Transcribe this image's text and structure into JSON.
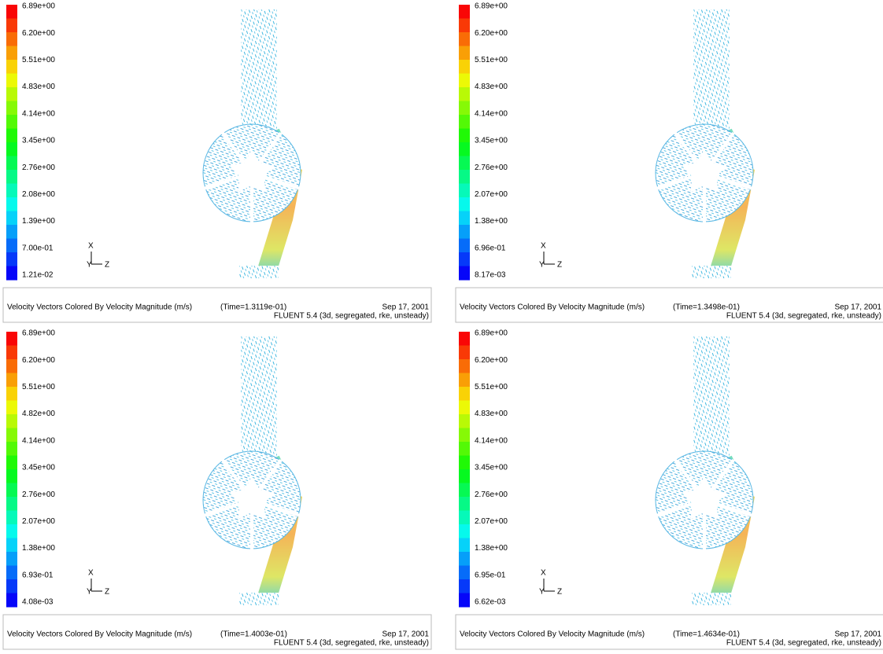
{
  "panels": [
    {
      "legend": [
        "6.89e+00",
        "6.20e+00",
        "5.51e+00",
        "4.83e+00",
        "4.14e+00",
        "3.45e+00",
        "2.76e+00",
        "2.08e+00",
        "1.39e+00",
        "7.00e-01",
        "1.21e-02"
      ],
      "axes": [
        "X",
        "Y",
        "Z"
      ],
      "caption": "Velocity Vectors Colored By Velocity Magnitude (m/s)",
      "time": "(Time=1.3119e-01)",
      "date": "Sep 17, 2001",
      "solver": "FLUENT 5.4 (3d, segregated, rke, unsteady)"
    },
    {
      "legend": [
        "6.89e+00",
        "6.20e+00",
        "5.51e+00",
        "4.83e+00",
        "4.14e+00",
        "3.45e+00",
        "2.76e+00",
        "2.07e+00",
        "1.38e+00",
        "6.96e-01",
        "8.17e-03"
      ],
      "axes": [
        "X",
        "Y",
        "Z"
      ],
      "caption": "Velocity Vectors Colored By Velocity Magnitude (m/s)",
      "time": "(Time=1.3498e-01)",
      "date": "Sep 17, 2001",
      "solver": "FLUENT 5.4 (3d, segregated, rke, unsteady)"
    },
    {
      "legend": [
        "6.89e+00",
        "6.20e+00",
        "5.51e+00",
        "4.82e+00",
        "4.14e+00",
        "3.45e+00",
        "2.76e+00",
        "2.07e+00",
        "1.38e+00",
        "6.93e-01",
        "4.08e-03"
      ],
      "axes": [
        "X",
        "Y",
        "Z"
      ],
      "caption": "Velocity Vectors Colored By Velocity Magnitude (m/s)",
      "time": "(Time=1.4003e-01)",
      "date": "Sep 17, 2001",
      "solver": "FLUENT 5.4 (3d, segregated, rke, unsteady)"
    },
    {
      "legend": [
        "6.89e+00",
        "6.20e+00",
        "5.51e+00",
        "4.83e+00",
        "4.14e+00",
        "3.45e+00",
        "2.76e+00",
        "2.07e+00",
        "1.38e+00",
        "6.95e-01",
        "6.62e-03"
      ],
      "axes": [
        "X",
        "Y",
        "Z"
      ],
      "caption": "Velocity Vectors Colored By Velocity Magnitude (m/s)",
      "time": "(Time=1.4634e-01)",
      "date": "Sep 17, 2001",
      "solver": "FLUENT 5.4 (3d, segregated, rke, unsteady)"
    }
  ]
}
